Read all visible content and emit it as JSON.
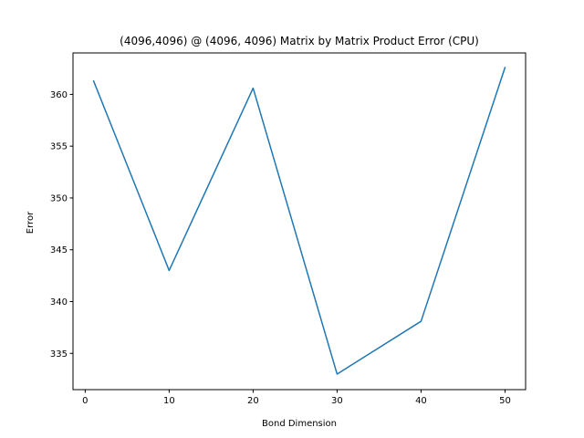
{
  "chart_data": {
    "type": "line",
    "title": "(4096,4096) @ (4096, 4096) Matrix by Matrix Product Error (CPU)",
    "xlabel": "Bond Dimension",
    "ylabel": "Error",
    "xlim": [
      -1.45,
      52.45
    ],
    "ylim": [
      331.5,
      364.0
    ],
    "xticks": [
      0,
      10,
      20,
      30,
      40,
      50
    ],
    "yticks": [
      335,
      340,
      345,
      350,
      355,
      360
    ],
    "grid": false,
    "legend": "none",
    "x": [
      1,
      10,
      20,
      30,
      40,
      50
    ],
    "series": [
      {
        "values": [
          361.3,
          343.0,
          360.6,
          333.0,
          338.1,
          362.6
        ],
        "color": "#1f77b4"
      }
    ]
  }
}
